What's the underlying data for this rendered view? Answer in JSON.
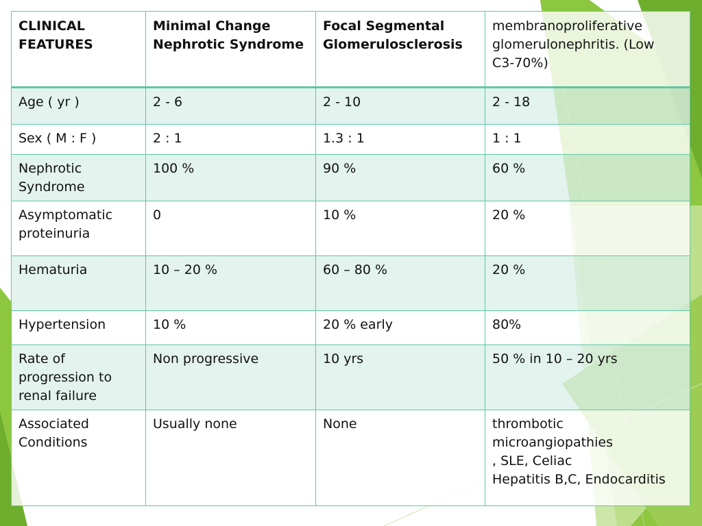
{
  "colors": {
    "border": "#5dc7a6",
    "band": "#dbf0e9",
    "accent_green": "#8dc63f",
    "accent_light": "#c6e39a"
  },
  "table": {
    "header": [
      "CLINICAL\nFEATURES",
      "Minimal Change\nNephrotic Syndrome",
      "Focal Segmental\nGlomerulosclerosis",
      "membranoproliferative\nglomerulonephritis. (Low\nC3-70%)"
    ],
    "rows": [
      [
        "Age ( yr )",
        " 2 -  6",
        "2 - 10",
        "2 - 18"
      ],
      [
        "Sex ( M : F )",
        " 2 : 1",
        "1.3 : 1",
        "1 : 1"
      ],
      [
        "Nephrotic\nSyndrome",
        "100 %",
        "90 %",
        "60 %"
      ],
      [
        "Asymptomatic\nproteinuria",
        "0",
        "10 %",
        "20 %"
      ],
      [
        "Hematuria",
        "10 – 20 %",
        "60 – 80 %",
        "20 %"
      ],
      [
        "Hypertension",
        "10 %",
        "20 % early",
        "80%"
      ],
      [
        "Rate of\nprogression to\nrenal failure",
        "Non progressive",
        "10 yrs",
        "50 % in 10 – 20 yrs"
      ],
      [
        "Associated\nConditions",
        "Usually none",
        "None",
        "thrombotic\nmicroangiopathies\n, SLE, Celiac\nHepatitis B,C, Endocarditis"
      ]
    ]
  }
}
